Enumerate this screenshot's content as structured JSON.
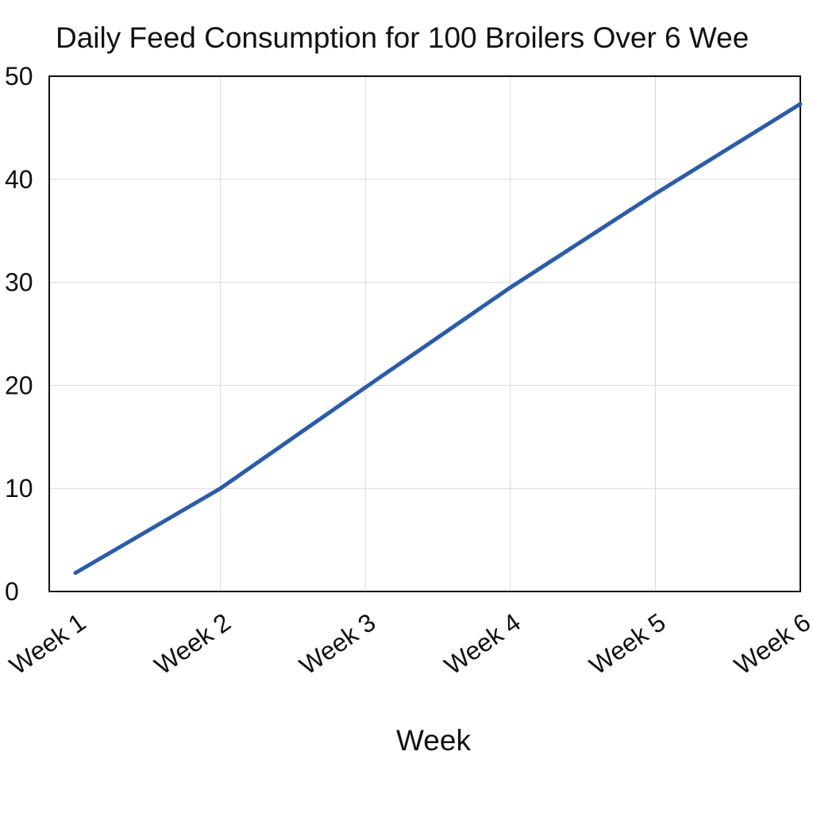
{
  "chart_data": {
    "type": "line",
    "title": "Daily Feed Consumption for 100 Broilers Over 6 Wee",
    "xlabel": "Week",
    "ylabel": "",
    "categories": [
      "Week 1",
      "Week 2",
      "Week 3",
      "Week 4",
      "Week 5",
      "Week 6"
    ],
    "series": [
      {
        "values": [
          1.8,
          10,
          19.8,
          29.5,
          38.6,
          47.3
        ]
      }
    ],
    "ylim": [
      0,
      50
    ],
    "yticks": [
      0,
      10,
      20,
      30,
      40,
      50
    ],
    "ytick_labels": [
      "0",
      "10",
      "20",
      "30",
      "40",
      "50"
    ],
    "grid": true,
    "legend": "none",
    "colors": {
      "line": "#2a5caa",
      "grid": "#d9d9d9",
      "axis": "#111111"
    }
  }
}
